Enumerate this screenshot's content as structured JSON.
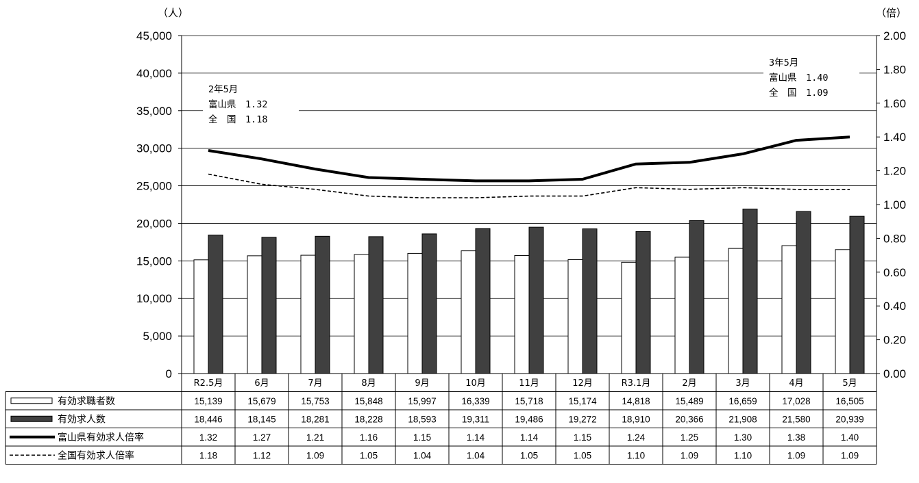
{
  "chart_data": {
    "type": "bar",
    "left_axis": {
      "unit": "（人）",
      "min": 0,
      "max": 45000,
      "step": 5000,
      "ticks": [
        "0",
        "5,000",
        "10,000",
        "15,000",
        "20,000",
        "25,000",
        "30,000",
        "35,000",
        "40,000",
        "45,000"
      ]
    },
    "right_axis": {
      "unit": "（倍）",
      "min": 0,
      "max": 2.0,
      "step": 0.2,
      "ticks": [
        "0.00",
        "0.20",
        "0.40",
        "0.60",
        "0.80",
        "1.00",
        "1.20",
        "1.40",
        "1.60",
        "1.80",
        "2.00"
      ]
    },
    "grid": true,
    "categories": [
      "R2.5月",
      "6月",
      "7月",
      "8月",
      "9月",
      "10月",
      "11月",
      "12月",
      "R3.1月",
      "2月",
      "3月",
      "4月",
      "5月"
    ],
    "series": [
      {
        "name": "有効求職者数",
        "type": "bar",
        "axis": "left",
        "color": "#ffffff",
        "values": [
          15139,
          15679,
          15753,
          15848,
          15997,
          16339,
          15718,
          15174,
          14818,
          15489,
          16659,
          17028,
          16505
        ],
        "labels": [
          "15,139",
          "15,679",
          "15,753",
          "15,848",
          "15,997",
          "16,339",
          "15,718",
          "15,174",
          "14,818",
          "15,489",
          "16,659",
          "17,028",
          "16,505"
        ]
      },
      {
        "name": "有効求人数",
        "type": "bar",
        "axis": "left",
        "color": "#404040",
        "values": [
          18446,
          18145,
          18281,
          18228,
          18593,
          19311,
          19486,
          19272,
          18910,
          20366,
          21908,
          21580,
          20939
        ],
        "labels": [
          "18,446",
          "18,145",
          "18,281",
          "18,228",
          "18,593",
          "19,311",
          "19,486",
          "19,272",
          "18,910",
          "20,366",
          "21,908",
          "21,580",
          "20,939"
        ]
      },
      {
        "name": "富山県有効求人倍率",
        "type": "line",
        "axis": "right",
        "style": "solid",
        "values": [
          1.32,
          1.27,
          1.21,
          1.16,
          1.15,
          1.14,
          1.14,
          1.15,
          1.24,
          1.25,
          1.3,
          1.38,
          1.4
        ],
        "labels": [
          "1.32",
          "1.27",
          "1.21",
          "1.16",
          "1.15",
          "1.14",
          "1.14",
          "1.15",
          "1.24",
          "1.25",
          "1.30",
          "1.38",
          "1.40"
        ]
      },
      {
        "name": "全国有効求人倍率",
        "type": "line",
        "axis": "right",
        "style": "dashed",
        "values": [
          1.18,
          1.12,
          1.09,
          1.05,
          1.04,
          1.04,
          1.05,
          1.05,
          1.1,
          1.09,
          1.1,
          1.09,
          1.09
        ],
        "labels": [
          "1.18",
          "1.12",
          "1.09",
          "1.05",
          "1.04",
          "1.04",
          "1.05",
          "1.05",
          "1.10",
          "1.09",
          "1.10",
          "1.09",
          "1.09"
        ]
      }
    ],
    "annotations": [
      {
        "lines": [
          "2年5月",
          "富山県　1.32",
          "全　国　1.18"
        ]
      },
      {
        "lines": [
          "3年5月",
          "富山県　1.40",
          "全　国　1.09"
        ]
      }
    ]
  }
}
